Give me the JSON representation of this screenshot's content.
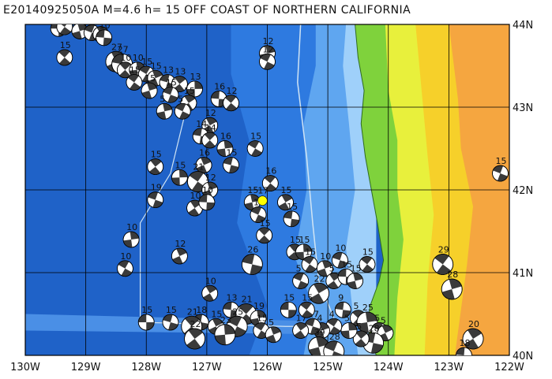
{
  "title": "E20140925050A M=4.6 h= 15 OFF COAST OF NORTHERN CALIFORNIA",
  "map": {
    "lon_range": [
      -130,
      -122
    ],
    "lat_range": [
      40,
      44
    ],
    "x_ticks": [
      "130W",
      "129W",
      "128W",
      "127W",
      "126W",
      "125W",
      "124W",
      "123W",
      "122W"
    ],
    "y_ticks": [
      "40N",
      "41N",
      "42N",
      "43N",
      "44N"
    ],
    "grid": true,
    "colors": {
      "deep_ocean": "#1f62c8",
      "mid_ocean": "#2e7ae0",
      "slope": "#5fa6f0",
      "shelf": "#9fd0fa",
      "coast_green": "#7fd23c",
      "lowland_yellow": "#e8f03c",
      "upland": "#f6d02a",
      "highland_orange": "#f5a640",
      "grid": "#000000",
      "boundary": "#d0e4f4",
      "event_marker": "#ffff00"
    },
    "event": {
      "lon": -126.08,
      "lat": 41.87,
      "label": "17"
    },
    "mechanisms": [
      {
        "lon": -129.45,
        "lat": 43.95,
        "depth": "14"
      },
      {
        "lon": -129.35,
        "lat": 43.97,
        "depth": "15"
      },
      {
        "lon": -129.1,
        "lat": 43.92,
        "depth": "17"
      },
      {
        "lon": -128.9,
        "lat": 43.9,
        "depth": "12"
      },
      {
        "lon": -128.75,
        "lat": 43.88,
        "depth": "12"
      },
      {
        "lon": -128.7,
        "lat": 43.84,
        "depth": "10"
      },
      {
        "lon": -129.35,
        "lat": 43.6,
        "depth": "15"
      },
      {
        "lon": -126.0,
        "lat": 43.65,
        "depth": "12"
      },
      {
        "lon": -126.0,
        "lat": 43.55,
        "depth": "12"
      },
      {
        "lon": -128.5,
        "lat": 43.55,
        "depth": "27"
      },
      {
        "lon": -128.4,
        "lat": 43.52,
        "depth": "27"
      },
      {
        "lon": -128.35,
        "lat": 43.45,
        "depth": "10"
      },
      {
        "lon": -128.15,
        "lat": 43.45,
        "depth": "10"
      },
      {
        "lon": -128.0,
        "lat": 43.4,
        "depth": "15"
      },
      {
        "lon": -127.85,
        "lat": 43.35,
        "depth": "15"
      },
      {
        "lon": -127.65,
        "lat": 43.3,
        "depth": "13"
      },
      {
        "lon": -127.45,
        "lat": 43.28,
        "depth": "13"
      },
      {
        "lon": -127.2,
        "lat": 43.22,
        "depth": "13"
      },
      {
        "lon": -128.2,
        "lat": 43.3,
        "depth": "15"
      },
      {
        "lon": -127.95,
        "lat": 43.2,
        "depth": "15"
      },
      {
        "lon": -127.6,
        "lat": 43.15,
        "depth": "15"
      },
      {
        "lon": -127.3,
        "lat": 43.05,
        "depth": "15"
      },
      {
        "lon": -126.8,
        "lat": 43.1,
        "depth": "16"
      },
      {
        "lon": -126.6,
        "lat": 43.05,
        "depth": "12"
      },
      {
        "lon": -127.7,
        "lat": 42.95,
        "depth": "5"
      },
      {
        "lon": -127.4,
        "lat": 42.95,
        "depth": "5"
      },
      {
        "lon": -126.95,
        "lat": 42.78,
        "depth": "12"
      },
      {
        "lon": -127.1,
        "lat": 42.65,
        "depth": "14"
      },
      {
        "lon": -126.95,
        "lat": 42.6,
        "depth": "14"
      },
      {
        "lon": -126.7,
        "lat": 42.5,
        "depth": "16"
      },
      {
        "lon": -126.2,
        "lat": 42.5,
        "depth": "15"
      },
      {
        "lon": -127.05,
        "lat": 42.3,
        "depth": "16"
      },
      {
        "lon": -126.6,
        "lat": 42.3,
        "depth": "15"
      },
      {
        "lon": -127.85,
        "lat": 42.28,
        "depth": "15"
      },
      {
        "lon": -127.45,
        "lat": 42.15,
        "depth": "15"
      },
      {
        "lon": -127.15,
        "lat": 42.1,
        "depth": "21"
      },
      {
        "lon": -126.95,
        "lat": 42.0,
        "depth": "12"
      },
      {
        "lon": -127.85,
        "lat": 41.88,
        "depth": "19"
      },
      {
        "lon": -127.2,
        "lat": 41.78,
        "depth": "10"
      },
      {
        "lon": -127.0,
        "lat": 41.85,
        "depth": "10"
      },
      {
        "lon": -125.95,
        "lat": 42.08,
        "depth": "16"
      },
      {
        "lon": -126.25,
        "lat": 41.85,
        "depth": "15"
      },
      {
        "lon": -126.15,
        "lat": 41.7,
        "depth": "15"
      },
      {
        "lon": -125.7,
        "lat": 41.85,
        "depth": "15"
      },
      {
        "lon": -125.6,
        "lat": 41.65,
        "depth": "15"
      },
      {
        "lon": -126.05,
        "lat": 41.45,
        "depth": "15"
      },
      {
        "lon": -128.25,
        "lat": 41.4,
        "depth": "10"
      },
      {
        "lon": -128.35,
        "lat": 41.05,
        "depth": "10"
      },
      {
        "lon": -127.45,
        "lat": 41.2,
        "depth": "12"
      },
      {
        "lon": -126.25,
        "lat": 41.1,
        "depth": "26"
      },
      {
        "lon": -125.55,
        "lat": 41.25,
        "depth": "15"
      },
      {
        "lon": -125.4,
        "lat": 41.25,
        "depth": "15"
      },
      {
        "lon": -125.3,
        "lat": 41.1,
        "depth": "15"
      },
      {
        "lon": -125.05,
        "lat": 41.05,
        "depth": "10"
      },
      {
        "lon": -124.8,
        "lat": 41.15,
        "depth": "10"
      },
      {
        "lon": -124.9,
        "lat": 40.9,
        "depth": "5"
      },
      {
        "lon": -124.7,
        "lat": 40.95,
        "depth": "15"
      },
      {
        "lon": -124.35,
        "lat": 41.1,
        "depth": "15"
      },
      {
        "lon": -124.55,
        "lat": 40.9,
        "depth": "15"
      },
      {
        "lon": -125.45,
        "lat": 40.9,
        "depth": "5"
      },
      {
        "lon": -125.15,
        "lat": 40.75,
        "depth": "22"
      },
      {
        "lon": -124.75,
        "lat": 40.55,
        "depth": "9"
      },
      {
        "lon": -124.5,
        "lat": 40.45,
        "depth": "5"
      },
      {
        "lon": -124.35,
        "lat": 40.4,
        "depth": "25"
      },
      {
        "lon": -124.15,
        "lat": 40.3,
        "depth": "5"
      },
      {
        "lon": -124.05,
        "lat": 40.27,
        "depth": "5"
      },
      {
        "lon": -124.25,
        "lat": 40.15,
        "depth": "28"
      },
      {
        "lon": -124.45,
        "lat": 40.2,
        "depth": "5"
      },
      {
        "lon": -124.65,
        "lat": 40.3,
        "depth": "5"
      },
      {
        "lon": -124.9,
        "lat": 40.35,
        "depth": "4"
      },
      {
        "lon": -125.1,
        "lat": 40.3,
        "depth": "4"
      },
      {
        "lon": -125.25,
        "lat": 40.35,
        "depth": "17"
      },
      {
        "lon": -125.45,
        "lat": 40.3,
        "depth": "17"
      },
      {
        "lon": -125.65,
        "lat": 40.55,
        "depth": "15"
      },
      {
        "lon": -125.35,
        "lat": 40.55,
        "depth": "15"
      },
      {
        "lon": -125.15,
        "lat": 40.1,
        "depth": "39"
      },
      {
        "lon": -124.9,
        "lat": 40.05,
        "depth": "28"
      },
      {
        "lon": -126.95,
        "lat": 40.75,
        "depth": "10"
      },
      {
        "lon": -126.6,
        "lat": 40.55,
        "depth": "13"
      },
      {
        "lon": -126.35,
        "lat": 40.5,
        "depth": "21"
      },
      {
        "lon": -126.15,
        "lat": 40.45,
        "depth": "19"
      },
      {
        "lon": -126.5,
        "lat": 40.35,
        "depth": "25"
      },
      {
        "lon": -126.85,
        "lat": 40.35,
        "depth": "15"
      },
      {
        "lon": -127.1,
        "lat": 40.4,
        "depth": "18"
      },
      {
        "lon": -127.25,
        "lat": 40.35,
        "depth": "21"
      },
      {
        "lon": -126.7,
        "lat": 40.25,
        "depth": "23"
      },
      {
        "lon": -126.1,
        "lat": 40.3,
        "depth": "15"
      },
      {
        "lon": -125.9,
        "lat": 40.25,
        "depth": "5"
      },
      {
        "lon": -127.6,
        "lat": 40.4,
        "depth": "15"
      },
      {
        "lon": -127.2,
        "lat": 40.2,
        "depth": "22"
      },
      {
        "lon": -128.0,
        "lat": 40.4,
        "depth": "15"
      },
      {
        "lon": -123.1,
        "lat": 41.1,
        "depth": "29"
      },
      {
        "lon": -122.95,
        "lat": 40.8,
        "depth": "28"
      },
      {
        "lon": -122.15,
        "lat": 42.2,
        "depth": "15"
      },
      {
        "lon": -122.6,
        "lat": 40.2,
        "depth": "20"
      },
      {
        "lon": -122.75,
        "lat": 40.0,
        "depth": "18"
      }
    ]
  }
}
